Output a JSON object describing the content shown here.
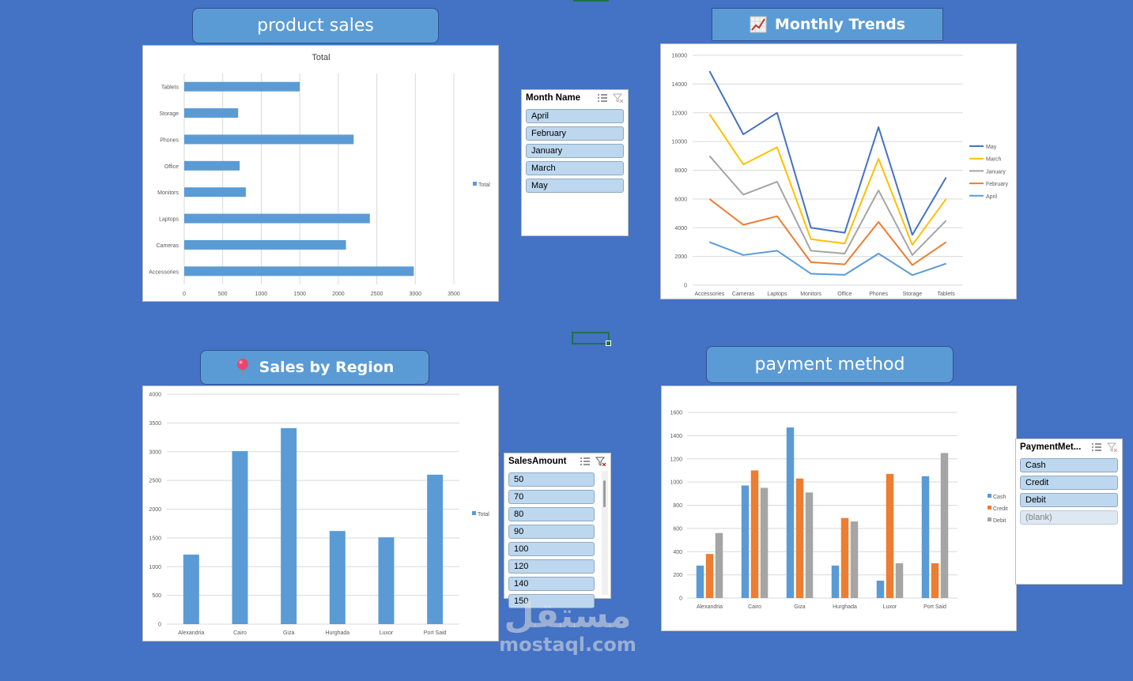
{
  "titles": {
    "product_sales": "product sales",
    "monthly_trends": "Monthly Trends",
    "sales_by_region": "Sales by Region",
    "payment_method": "payment method"
  },
  "icons": {
    "monthly_trends": "chart-increasing-icon",
    "sales_by_region": "round-pushpin-icon"
  },
  "slicers": {
    "month_name": {
      "header": "Month Name",
      "items": [
        "April",
        "February",
        "January",
        "March",
        "May"
      ]
    },
    "sales_amount": {
      "header": "SalesAmount",
      "items": [
        "50",
        "70",
        "80",
        "90",
        "100",
        "120",
        "140",
        "150"
      ]
    },
    "payment_method": {
      "header": "PaymentMet...",
      "items": [
        "Cash",
        "Credit",
        "Debit",
        "(blank)"
      ]
    }
  },
  "watermark": {
    "arabic": "مستقل",
    "latin": "mostaql.com"
  },
  "colors": {
    "background": "#4472c4",
    "bar_blue": "#5b9bd5",
    "orange": "#ed7d31",
    "gray": "#a5a5a5",
    "yellow": "#ffc000",
    "dark_blue": "#4472c4"
  },
  "chart_data": [
    {
      "id": "product_sales",
      "type": "bar",
      "orientation": "horizontal",
      "title": "Total",
      "categories": [
        "Accessories",
        "Cameras",
        "Laptops",
        "Monitors",
        "Office",
        "Phones",
        "Storage",
        "Tablets"
      ],
      "series": [
        {
          "name": "Total",
          "values": [
            2980,
            2100,
            2410,
            800,
            720,
            2200,
            700,
            1500
          ],
          "color": "#5b9bd5"
        }
      ],
      "xlim": [
        0,
        3500
      ],
      "xticks": [
        "0",
        "500",
        "1000",
        "1500",
        "2000",
        "2500",
        "3000",
        "3500"
      ],
      "grid": true,
      "legend": "right"
    },
    {
      "id": "monthly_trends",
      "type": "line",
      "categories": [
        "Accessories",
        "Cameras",
        "Laptops",
        "Monitors",
        "Office",
        "Phones",
        "Storage",
        "Tablets"
      ],
      "series": [
        {
          "name": "May",
          "values": [
            14900,
            10500,
            12000,
            4000,
            3650,
            11000,
            3500,
            7500
          ],
          "color": "#4472c4"
        },
        {
          "name": "March",
          "values": [
            11900,
            8400,
            9600,
            3200,
            2900,
            8800,
            2800,
            6000
          ],
          "color": "#ffc000"
        },
        {
          "name": "January",
          "values": [
            9000,
            6300,
            7200,
            2400,
            2200,
            6600,
            2100,
            4500
          ],
          "color": "#a5a5a5"
        },
        {
          "name": "February",
          "values": [
            6000,
            4200,
            4800,
            1600,
            1450,
            4400,
            1400,
            3000
          ],
          "color": "#ed7d31"
        },
        {
          "name": "April",
          "values": [
            3000,
            2100,
            2400,
            800,
            720,
            2200,
            700,
            1500
          ],
          "color": "#5b9bd5"
        }
      ],
      "ylim": [
        0,
        16000
      ],
      "yticks": [
        "0",
        "2000",
        "4000",
        "6000",
        "8000",
        "10000",
        "12000",
        "14000",
        "16000"
      ],
      "grid": true,
      "legend": "right"
    },
    {
      "id": "sales_by_region",
      "type": "bar",
      "categories": [
        "Alexandria",
        "Cairo",
        "Giza",
        "Hurghada",
        "Luxor",
        "Port Said"
      ],
      "series": [
        {
          "name": "Total",
          "values": [
            1210,
            3010,
            3410,
            1620,
            1510,
            2600
          ],
          "color": "#5b9bd5"
        }
      ],
      "ylim": [
        0,
        4000
      ],
      "yticks": [
        "0",
        "500",
        "1000",
        "1500",
        "2000",
        "2500",
        "3000",
        "3500",
        "4000"
      ],
      "grid": true,
      "legend": "right"
    },
    {
      "id": "payment_method",
      "type": "bar",
      "categories": [
        "Alexandria",
        "Cairo",
        "Giza",
        "Hurghada",
        "Luxor",
        "Port Said"
      ],
      "series": [
        {
          "name": "Cash",
          "values": [
            280,
            970,
            1470,
            280,
            150,
            1050
          ],
          "color": "#5b9bd5"
        },
        {
          "name": "Credit",
          "values": [
            380,
            1100,
            1030,
            690,
            1070,
            300
          ],
          "color": "#ed7d31"
        },
        {
          "name": "Debit",
          "values": [
            560,
            950,
            910,
            660,
            300,
            1250
          ],
          "color": "#a5a5a5"
        }
      ],
      "ylim": [
        0,
        1600
      ],
      "yticks": [
        "0",
        "200",
        "400",
        "600",
        "800",
        "1000",
        "1200",
        "1400",
        "1600"
      ],
      "grid": true,
      "legend": "right"
    }
  ]
}
